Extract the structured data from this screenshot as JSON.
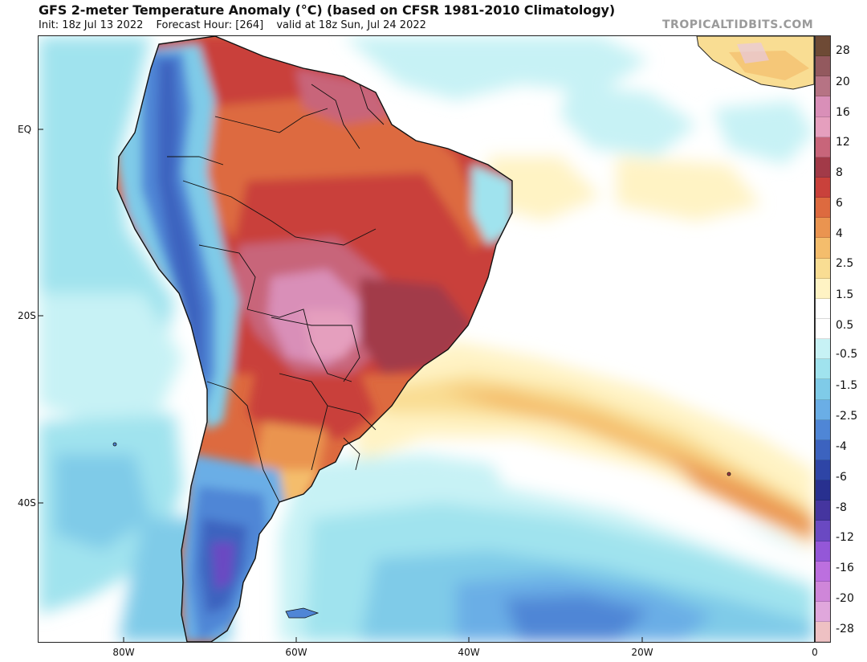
{
  "header": {
    "title": "GFS 2-meter Temperature Anomaly (°C) (based on CFSR 1981-2010 Climatology)",
    "init": "Init: 18z Jul 13 2022",
    "forecast_hour": "Forecast Hour: [264]",
    "valid": "valid at 18z Sun, Jul 24 2022",
    "watermark": "TROPICALTIDBITS.COM"
  },
  "map": {
    "lat_labels": [
      "EQ",
      "20S",
      "40S"
    ],
    "lon_labels": [
      "80W",
      "60W",
      "40W",
      "20W",
      "0"
    ]
  },
  "colorbar": {
    "labels": [
      "28",
      "20",
      "16",
      "12",
      "8",
      "6",
      "4",
      "2.5",
      "1.5",
      "0.5",
      "-0.5",
      "-1.5",
      "-2.5",
      "-4",
      "-6",
      "-8",
      "-12",
      "-16",
      "-20",
      "-28"
    ],
    "colors": [
      "#6e4a35",
      "#93595e",
      "#b67384",
      "#d98fb8",
      "#e59fbe",
      "#c8657a",
      "#a23a48",
      "#c9413b",
      "#dd6a3f",
      "#ea9450",
      "#f4bd6c",
      "#f9dd93",
      "#fff3c4",
      "#ffffff",
      "#ffffff",
      "#c7f2f5",
      "#a0e3ee",
      "#7fcbe8",
      "#6aaee6",
      "#4f86d6",
      "#3c63bf",
      "#2e45a6",
      "#28308f",
      "#45359f",
      "#6a49c2",
      "#9457d8",
      "#bc6fdf",
      "#cf86d9",
      "#e0a7dc",
      "#eec1c3"
    ]
  }
}
